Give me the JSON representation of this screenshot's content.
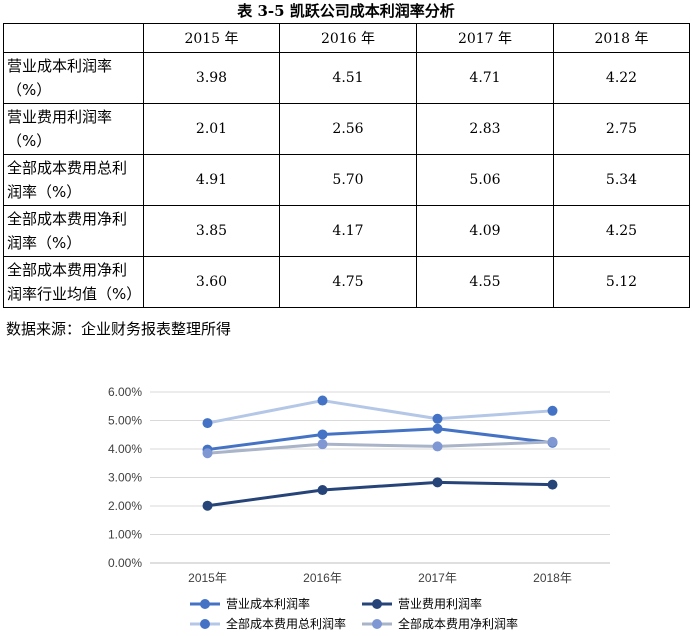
{
  "table": {
    "title": "表 3-5 凯跃公司成本利润率分析",
    "header": [
      "",
      "2015 年",
      "2016 年",
      "2017 年",
      "2018 年"
    ],
    "rows": [
      {
        "label_line1": "营业成本利润率",
        "label_line2": "（%）",
        "values": [
          "3.98",
          "4.51",
          "4.71",
          "4.22"
        ]
      },
      {
        "label_line1": "营业费用利润率",
        "label_line2": "（%）",
        "values": [
          "2.01",
          "2.56",
          "2.83",
          "2.75"
        ]
      },
      {
        "label_line1": "全部成本费用总利",
        "label_line2": "润率（%）",
        "values": [
          "4.91",
          "5.70",
          "5.06",
          "5.34"
        ]
      },
      {
        "label_line1": "全部成本费用净利",
        "label_line2": "润率（%）",
        "values": [
          "3.85",
          "4.17",
          "4.09",
          "4.25"
        ]
      },
      {
        "label_line1": "全部成本费用净利",
        "label_line2": "润率行业均值（%）",
        "values": [
          "3.60",
          "4.75",
          "4.55",
          "5.12"
        ]
      }
    ],
    "source": "数据来源：企业财务报表整理所得"
  },
  "chart_data": {
    "type": "line",
    "categories": [
      "2015年",
      "2016年",
      "2017年",
      "2018年"
    ],
    "ylim": [
      0,
      6
    ],
    "yticks": [
      "0.00%",
      "1.00%",
      "2.00%",
      "3.00%",
      "4.00%",
      "5.00%",
      "6.00%"
    ],
    "grid": true,
    "legend_position": "bottom",
    "series": [
      {
        "name": "营业成本利润率",
        "values": [
          3.98,
          4.51,
          4.71,
          4.22
        ],
        "color": "#4472c4"
      },
      {
        "name": "营业费用利润率",
        "values": [
          2.01,
          2.56,
          2.83,
          2.75
        ],
        "color": "#264478"
      },
      {
        "name": "全部成本费用总利润率",
        "values": [
          4.91,
          5.7,
          5.06,
          5.34
        ],
        "color": "#b4c7e7",
        "marker_color": "#4472c4"
      },
      {
        "name": "全部成本费用净利润率",
        "values": [
          3.85,
          4.17,
          4.09,
          4.25
        ],
        "color": "#a9b4c8",
        "marker_color": "#7f97d3"
      }
    ]
  }
}
